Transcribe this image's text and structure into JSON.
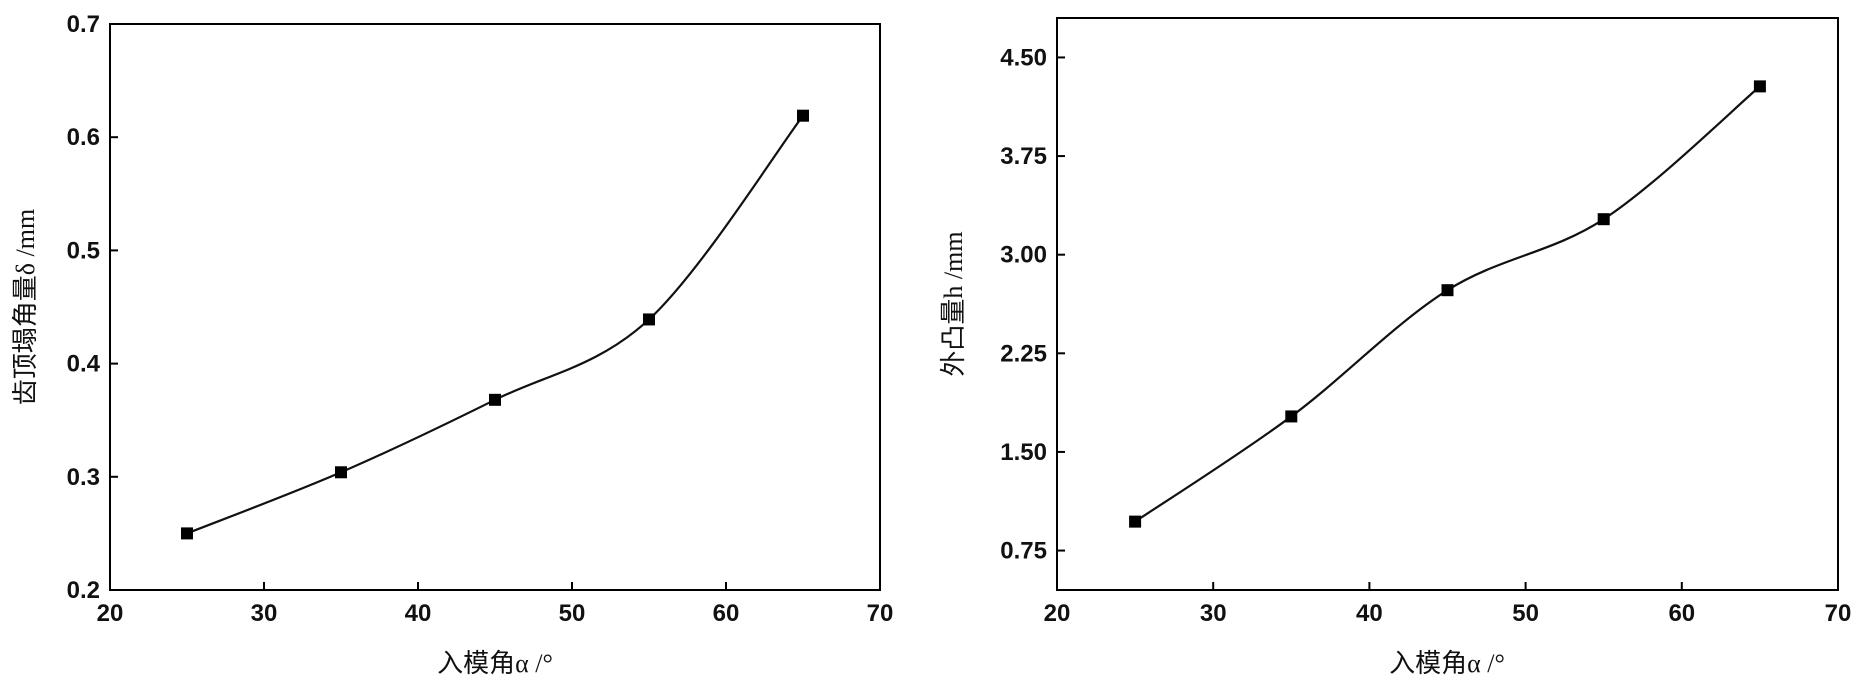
{
  "chart_data": [
    {
      "type": "scatter",
      "title": "",
      "xlabel": "入模角α /°",
      "ylabel": "齿顶塌角量δ /mm",
      "xlim": [
        20,
        70
      ],
      "ylim": [
        0.2,
        0.7
      ],
      "x_ticks": [
        "20",
        "30",
        "40",
        "50",
        "60",
        "70"
      ],
      "y_ticks": [
        "0.2",
        "0.3",
        "0.4",
        "0.5",
        "0.6",
        "0.7"
      ],
      "grid": false,
      "marker": "filled-square",
      "fit_curve": "smooth",
      "series": [
        {
          "x": [
            25,
            35,
            45,
            55,
            65
          ],
          "y": [
            0.25,
            0.304,
            0.368,
            0.439,
            0.619
          ]
        }
      ]
    },
    {
      "type": "scatter",
      "title": "",
      "xlabel": "入模角α /°",
      "ylabel": "外凸量h /mm",
      "xlim": [
        20,
        70
      ],
      "ylim": [
        0.45,
        4.8
      ],
      "x_ticks": [
        "20",
        "30",
        "40",
        "50",
        "60",
        "70"
      ],
      "y_ticks": [
        "0.75",
        "1.50",
        "2.25",
        "3.00",
        "3.75",
        "4.50"
      ],
      "grid": false,
      "marker": "filled-square",
      "fit_curve": "smooth",
      "series": [
        {
          "x": [
            25,
            35,
            45,
            55,
            65
          ],
          "y": [
            0.97,
            1.77,
            2.73,
            3.27,
            4.28
          ]
        }
      ]
    }
  ]
}
